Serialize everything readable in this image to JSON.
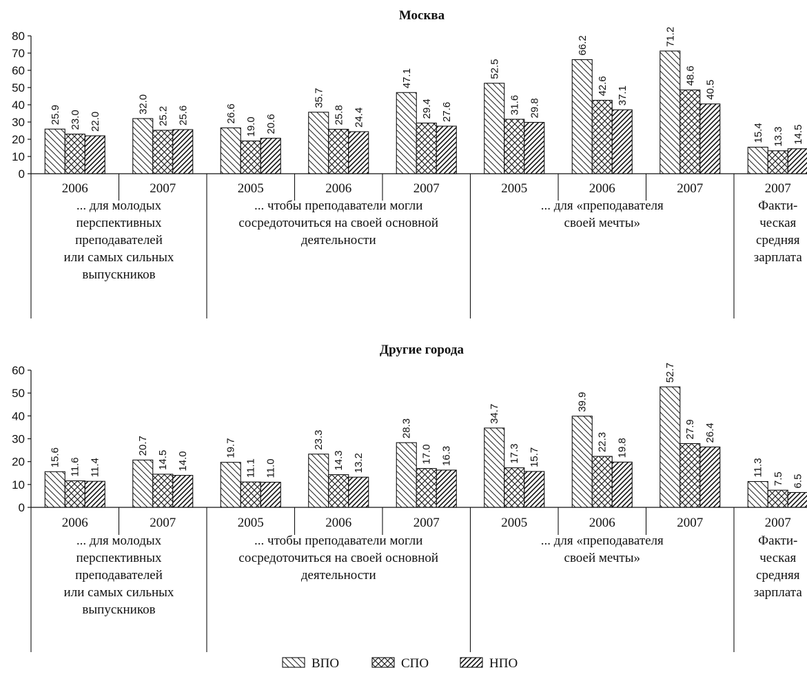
{
  "legend": [
    {
      "label": "ВПО",
      "pattern": "back"
    },
    {
      "label": "СПО",
      "pattern": "cross"
    },
    {
      "label": "НПО",
      "pattern": "fwd"
    }
  ],
  "chart_data": [
    {
      "type": "bar",
      "title": "Москва",
      "ylim": [
        0,
        80
      ],
      "yticks": [
        "0",
        "10",
        "20",
        "30",
        "40",
        "50",
        "60",
        "70",
        "80"
      ],
      "categories": [
        "2006",
        "2007",
        "2005",
        "2006",
        "2007",
        "2005",
        "2006",
        "2007",
        "2007"
      ],
      "groups": [
        {
          "lines": [
            "... для молодых",
            "перспективных",
            "преподавателей",
            "или самых сильных",
            "выпускников"
          ],
          "span": 2
        },
        {
          "lines": [
            "... чтобы преподаватели могли",
            "сосредоточиться на своей основной",
            "деятельности"
          ],
          "span": 3
        },
        {
          "lines": [
            "... для «преподавателя",
            "своей мечты»"
          ],
          "span": 3
        },
        {
          "lines": [
            "Факти-",
            "ческая",
            "средняя",
            "зарплата"
          ],
          "span": 1
        }
      ],
      "series": [
        {
          "name": "ВПО",
          "values": [
            25.9,
            32.0,
            26.6,
            35.7,
            47.1,
            52.5,
            66.2,
            71.2,
            15.4
          ],
          "labels": [
            "25.9",
            "32.0",
            "26.6",
            "35.7",
            "47.1",
            "52.5",
            "66.2",
            "71.2",
            "15.4"
          ]
        },
        {
          "name": "СПО",
          "values": [
            23.0,
            25.2,
            19.0,
            25.8,
            29.4,
            31.6,
            42.6,
            48.6,
            13.3
          ],
          "labels": [
            "23.0",
            "25.2",
            "19.0",
            "25.8",
            "29.4",
            "31.6",
            "42.6",
            "48.6",
            "13.3"
          ]
        },
        {
          "name": "НПО",
          "values": [
            22.0,
            25.6,
            20.6,
            24.4,
            27.6,
            29.8,
            37.1,
            40.5,
            14.5
          ],
          "labels": [
            "22.0",
            "25.6",
            "20.6",
            "24.4",
            "27.6",
            "29.8",
            "37.1",
            "40.5",
            "14.5"
          ]
        }
      ]
    },
    {
      "type": "bar",
      "title": "Другие города",
      "ylim": [
        0,
        60
      ],
      "yticks": [
        "0",
        "10",
        "20",
        "30",
        "40",
        "50",
        "60"
      ],
      "categories": [
        "2006",
        "2007",
        "2005",
        "2006",
        "2007",
        "2005",
        "2006",
        "2007",
        "2007"
      ],
      "groups": [
        {
          "lines": [
            "... для молодых",
            "перспективных",
            "преподавателей",
            "или самых сильных",
            "выпускников"
          ],
          "span": 2
        },
        {
          "lines": [
            "... чтобы преподаватели могли",
            "сосредоточиться на своей основной",
            "деятельности"
          ],
          "span": 3
        },
        {
          "lines": [
            "... для «преподавателя",
            "своей мечты»"
          ],
          "span": 3
        },
        {
          "lines": [
            "Факти-",
            "ческая",
            "средняя",
            "зарплата"
          ],
          "span": 1
        }
      ],
      "series": [
        {
          "name": "ВПО",
          "values": [
            15.6,
            20.7,
            19.7,
            23.3,
            28.3,
            34.7,
            39.9,
            52.7,
            11.3
          ],
          "labels": [
            "15.6",
            "20.7",
            "19.7",
            "23.3",
            "28.3",
            "34.7",
            "39.9",
            "52.7",
            "11.3"
          ]
        },
        {
          "name": "СПО",
          "values": [
            11.6,
            14.5,
            11.1,
            14.3,
            17.0,
            17.3,
            22.3,
            27.9,
            7.5
          ],
          "labels": [
            "11.6",
            "14.5",
            "11.1",
            "14.3",
            "17.0",
            "17.3",
            "22.3",
            "27.9",
            "7.5"
          ]
        },
        {
          "name": "НПО",
          "values": [
            11.4,
            14.0,
            11.0,
            13.2,
            16.3,
            15.7,
            19.8,
            26.4,
            6.5
          ],
          "labels": [
            "11.4",
            "14.0",
            "11.0",
            "13.2",
            "16.3",
            "15.7",
            "19.8",
            "26.4",
            "6.5"
          ]
        }
      ]
    }
  ]
}
